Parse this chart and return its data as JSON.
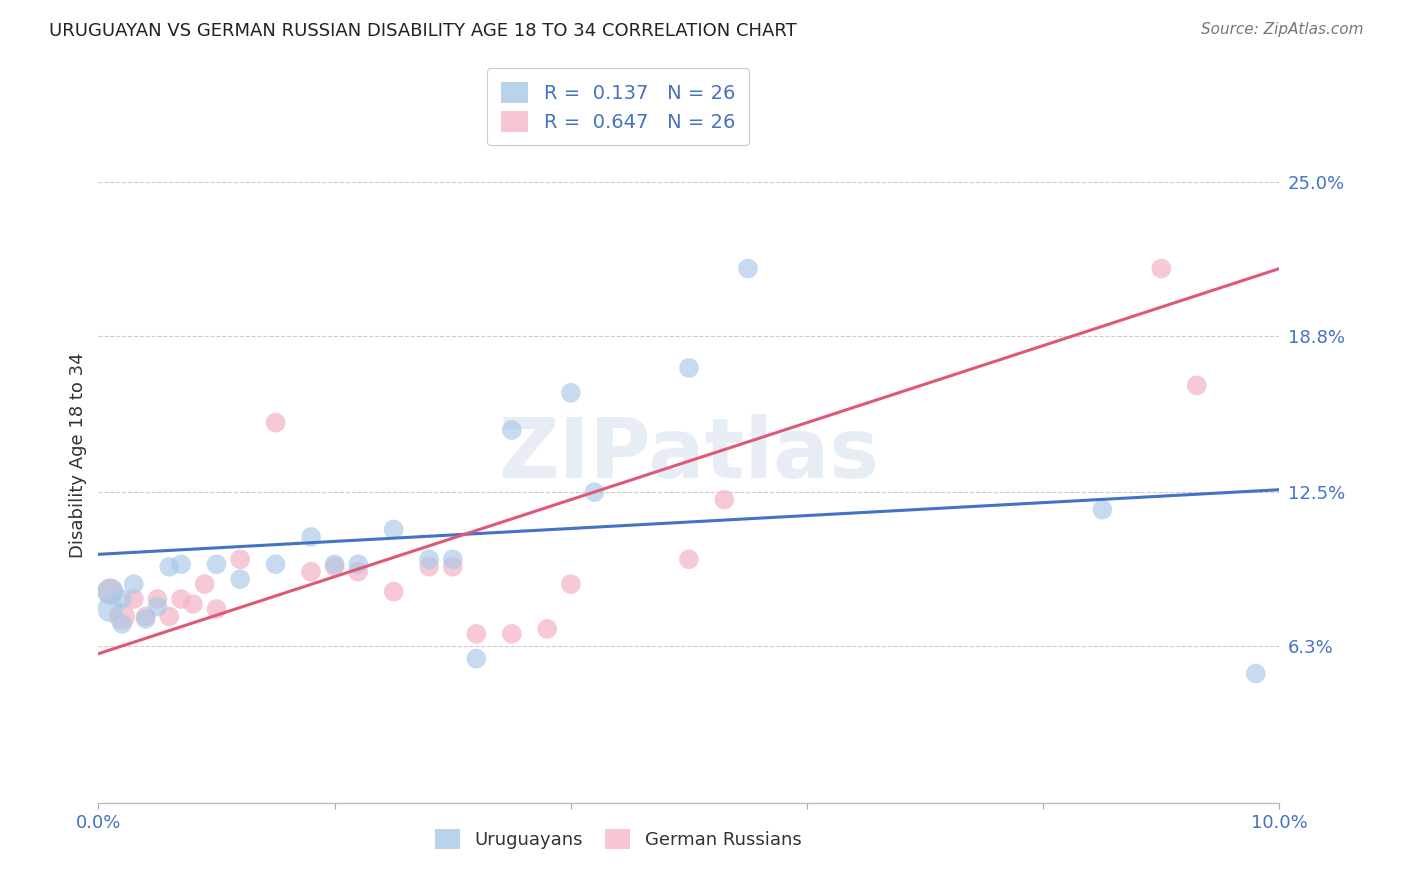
{
  "title": "URUGUAYAN VS GERMAN RUSSIAN DISABILITY AGE 18 TO 34 CORRELATION CHART",
  "source": "Source: ZipAtlas.com",
  "ylabel_label": "Disability Age 18 to 34",
  "xlim": [
    0.0,
    0.1
  ],
  "ylim": [
    0.0,
    0.28
  ],
  "xticks": [
    0.0,
    0.02,
    0.04,
    0.06,
    0.08,
    0.1
  ],
  "xticklabels": [
    "0.0%",
    "",
    "",
    "",
    "",
    "10.0%"
  ],
  "ytick_positions": [
    0.063,
    0.125,
    0.188,
    0.25
  ],
  "yticklabels": [
    "6.3%",
    "12.5%",
    "18.8%",
    "25.0%"
  ],
  "watermark": "ZIPatlas",
  "blue_color": "#a8c8e8",
  "pink_color": "#f4b8c8",
  "blue_line_color": "#4472c4",
  "pink_line_color": "#e05878",
  "legend_R1": "0.137",
  "legend_N1": "26",
  "legend_R2": "0.647",
  "legend_N2": "26",
  "blue_line_y0": 0.1,
  "blue_line_y1": 0.126,
  "pink_line_y0": 0.06,
  "pink_line_y1": 0.215,
  "uruguayan_x": [
    0.001,
    0.001,
    0.002,
    0.002,
    0.003,
    0.004,
    0.005,
    0.006,
    0.007,
    0.01,
    0.012,
    0.015,
    0.018,
    0.02,
    0.022,
    0.025,
    0.028,
    0.03,
    0.032,
    0.035,
    0.04,
    0.042,
    0.05,
    0.055,
    0.085,
    0.098
  ],
  "uruguayan_y": [
    0.085,
    0.078,
    0.082,
    0.072,
    0.088,
    0.074,
    0.079,
    0.095,
    0.096,
    0.096,
    0.09,
    0.096,
    0.107,
    0.096,
    0.096,
    0.11,
    0.098,
    0.098,
    0.058,
    0.15,
    0.165,
    0.125,
    0.175,
    0.215,
    0.118,
    0.052
  ],
  "german_russian_x": [
    0.001,
    0.002,
    0.003,
    0.004,
    0.005,
    0.006,
    0.007,
    0.008,
    0.009,
    0.01,
    0.012,
    0.015,
    0.018,
    0.02,
    0.022,
    0.025,
    0.028,
    0.03,
    0.032,
    0.035,
    0.038,
    0.04,
    0.05,
    0.053,
    0.09,
    0.093
  ],
  "german_russian_y": [
    0.085,
    0.075,
    0.082,
    0.075,
    0.082,
    0.075,
    0.082,
    0.08,
    0.088,
    0.078,
    0.098,
    0.153,
    0.093,
    0.095,
    0.093,
    0.085,
    0.095,
    0.095,
    0.068,
    0.068,
    0.07,
    0.088,
    0.098,
    0.122,
    0.215,
    0.168
  ],
  "uruguayan_sizes": [
    350,
    350,
    200,
    200,
    200,
    200,
    200,
    200,
    200,
    200,
    200,
    200,
    200,
    200,
    200,
    200,
    200,
    200,
    200,
    200,
    200,
    200,
    200,
    200,
    200,
    200
  ],
  "german_russian_sizes": [
    350,
    350,
    200,
    200,
    200,
    200,
    200,
    200,
    200,
    200,
    200,
    200,
    200,
    200,
    200,
    200,
    200,
    200,
    200,
    200,
    200,
    200,
    200,
    200,
    200,
    200
  ],
  "background_color": "#ffffff",
  "grid_color": "#cccccc"
}
